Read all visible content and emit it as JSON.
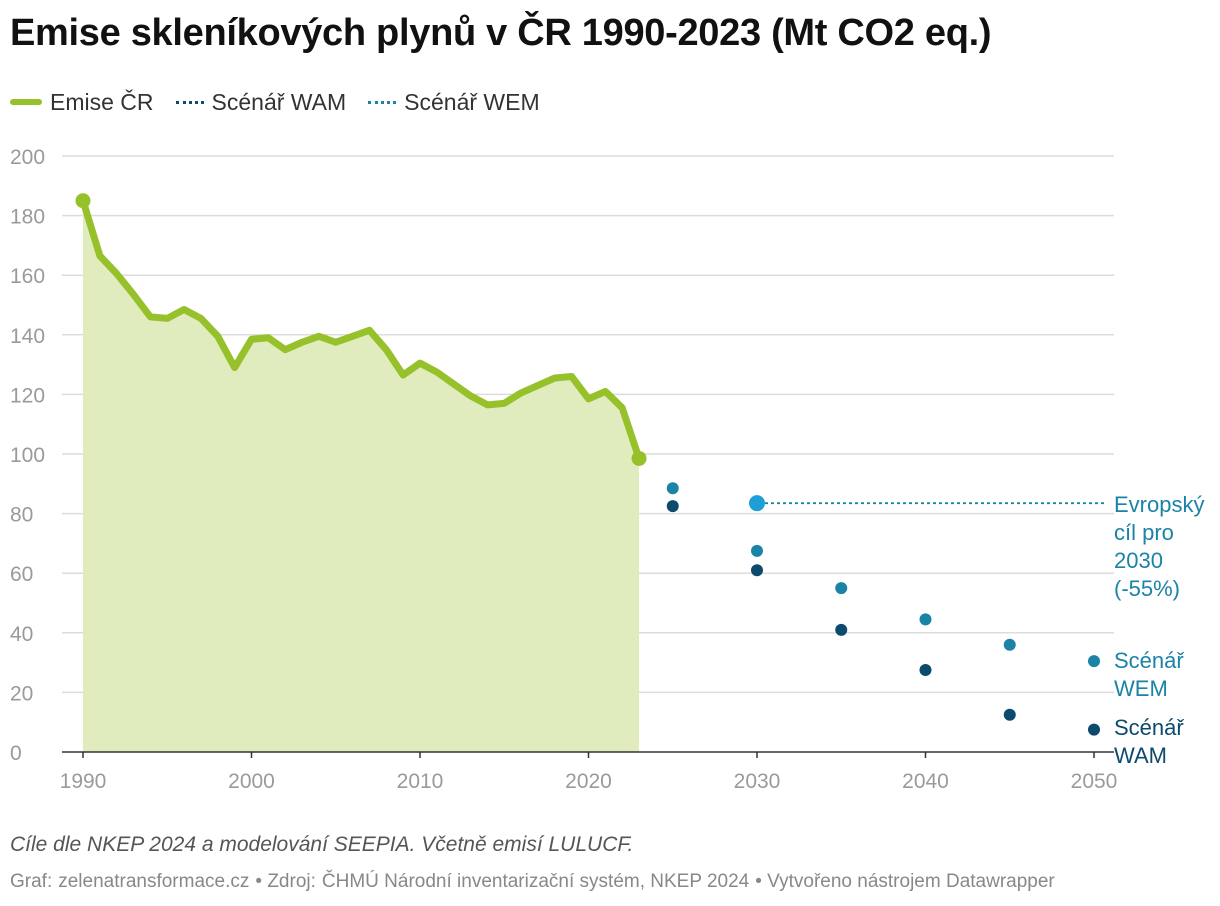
{
  "title": "Emise skleníkových plynů v ČR 1990-2023 (Mt CO2 eq.)",
  "legend": [
    {
      "label": "Emise ČR",
      "color": "#97c12a",
      "style": "solid"
    },
    {
      "label": "Scénář WAM",
      "color": "#0c4a6e",
      "style": "dotted"
    },
    {
      "label": "Scénář WEM",
      "color": "#1b83a6",
      "style": "dotted"
    }
  ],
  "colors": {
    "emissions": "#97c12a",
    "area": "#e0ecbd",
    "wam": "#0c4a6e",
    "wem": "#1b83a6",
    "target": "#1e9fd8",
    "grid": "#dcdcdc",
    "tick": "#9a9a9a"
  },
  "chart_data": {
    "type": "line",
    "title": "Emise skleníkových plynů v ČR 1990-2023 (Mt CO2 eq.)",
    "xlim": [
      1990,
      2050
    ],
    "ylim": [
      0,
      200
    ],
    "x_ticks": [
      1990,
      2000,
      2010,
      2020,
      2030,
      2040,
      2050
    ],
    "y_ticks": [
      0,
      20,
      40,
      60,
      80,
      100,
      120,
      140,
      160,
      180,
      200
    ],
    "grid": true,
    "legend_position": "top-left",
    "series": [
      {
        "name": "Emise ČR",
        "x": [
          1990,
          1991,
          1992,
          1993,
          1994,
          1995,
          1996,
          1997,
          1998,
          1999,
          2000,
          2001,
          2002,
          2003,
          2004,
          2005,
          2006,
          2007,
          2008,
          2009,
          2010,
          2011,
          2012,
          2013,
          2014,
          2015,
          2016,
          2017,
          2018,
          2019,
          2020,
          2021,
          2022,
          2023
        ],
        "values": [
          185,
          166.5,
          160.5,
          153.5,
          146,
          145.5,
          148.5,
          145.5,
          139.5,
          129,
          138.5,
          139,
          135,
          137.5,
          139.5,
          137.5,
          139.5,
          141.5,
          135,
          126.5,
          130.5,
          127.5,
          123.5,
          119.5,
          116.5,
          117,
          120.5,
          123,
          125.5,
          126,
          118.5,
          121,
          115.5,
          98.5
        ]
      },
      {
        "name": "Scénář WEM",
        "x": [
          2025,
          2030,
          2035,
          2040,
          2045,
          2050
        ],
        "values": [
          88.5,
          67.5,
          55,
          44.5,
          36,
          30.5
        ]
      },
      {
        "name": "Scénář WAM",
        "x": [
          2025,
          2030,
          2035,
          2040,
          2045,
          2050
        ],
        "values": [
          82.5,
          61,
          41,
          27.5,
          12.5,
          7.5
        ]
      }
    ],
    "target": {
      "x": 2030,
      "value": 83.5
    },
    "annotations": [
      {
        "key": "target",
        "lines": [
          "Evropský",
          "cíl pro",
          "2030",
          "(-55%)"
        ]
      },
      {
        "key": "wem",
        "lines": [
          "Scénář",
          "WEM"
        ]
      },
      {
        "key": "wam",
        "lines": [
          "Scénář",
          "WAM"
        ]
      }
    ]
  },
  "footer": {
    "note": "Cíle dle NKEP 2024 a modelování SEEPIA. Včetně emisí LULUCF.",
    "graf_label": "Graf:",
    "graf_value": "zelenatransformace.cz",
    "source_label": "• Zdroj:",
    "source_value": "ČHMÚ Národní inventarizační systém, NKEP 2024",
    "made_with": "• Vytvořeno nástrojem Datawrapper"
  }
}
